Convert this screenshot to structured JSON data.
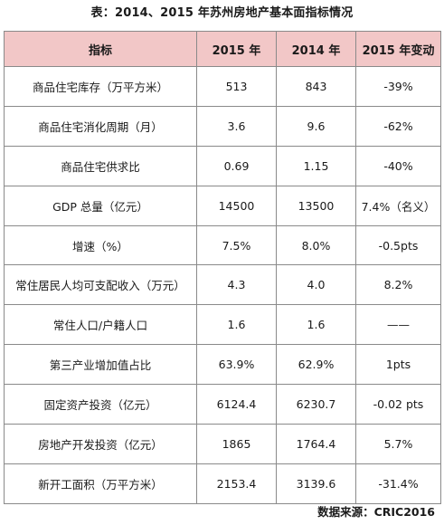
{
  "title": "表：2014、2015 年苏州房地产基本面指标情况",
  "headers": [
    "指标",
    "2015 年",
    "2014 年",
    "2015 年变动"
  ],
  "rows": [
    [
      "商品住宅库存（万平方米）",
      "513",
      "843",
      "-39%"
    ],
    [
      "商品住宅消化周期（月）",
      "3.6",
      "9.6",
      "-62%"
    ],
    [
      "商品住宅供求比",
      "0.69",
      "1.15",
      "-40%"
    ],
    [
      "GDP 总量（亿元）",
      "14500",
      "13500",
      "7.4%（名义）"
    ],
    [
      "增速（%）",
      "7.5%",
      "8.0%",
      "-0.5pts"
    ],
    [
      "常住居民人均可支配收入（万元）",
      "4.3",
      "4.0",
      "8.2%"
    ],
    [
      "常住人口/户籍人口",
      "1.6",
      "1.6",
      "——"
    ],
    [
      "第三产业增加值占比",
      "63.9%",
      "62.9%",
      "1pts"
    ],
    [
      "固定资产投资（亿元）",
      "6124.4",
      "6230.7",
      "-0.02 pts"
    ],
    [
      "房地产开发投资（亿元）",
      "1865",
      "1764.4",
      "5.7%"
    ],
    [
      "新开工面积（万平方米）",
      "2153.4",
      "3139.6",
      "-31.4%"
    ]
  ],
  "source": "数据来源：CRIC2016",
  "colors": {
    "header_bg": "#f2c7c7",
    "border": "#8a8a8a"
  }
}
